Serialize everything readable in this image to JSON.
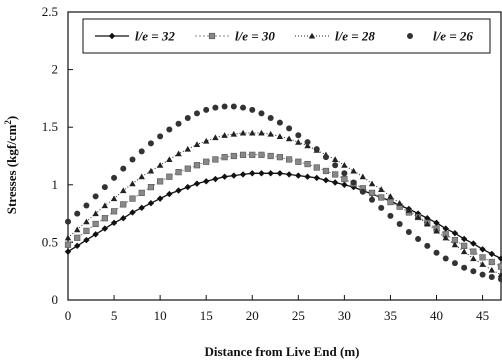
{
  "chart_data": {
    "type": "line",
    "xlabel": "Distance from Live End (m)",
    "ylabel": "Stresses (kgf/cm²)",
    "ylabel_parts": {
      "main": "Stresses (kgf/cm",
      "sup": "2",
      "close": ")"
    },
    "xlim": [
      0,
      47
    ],
    "ylim": [
      0,
      2.5
    ],
    "xticks": [
      "0",
      "5",
      "10",
      "15",
      "20",
      "25",
      "30",
      "35",
      "40",
      "45"
    ],
    "yticks": [
      "0",
      "0.5",
      "1",
      "1.5",
      "2",
      "2.5"
    ],
    "legend_position": "top",
    "x": [
      0,
      1,
      2,
      3,
      4,
      5,
      6,
      7,
      8,
      9,
      10,
      11,
      12,
      13,
      14,
      15,
      16,
      17,
      18,
      19,
      20,
      21,
      22,
      23,
      24,
      25,
      26,
      27,
      28,
      29,
      30,
      31,
      32,
      33,
      34,
      35,
      36,
      37,
      38,
      39,
      40,
      41,
      42,
      43,
      44,
      45,
      46,
      47
    ],
    "series": [
      {
        "name": "l/e = 32",
        "marker": "diamond",
        "color": "#111111",
        "values": [
          0.42,
          0.47,
          0.52,
          0.57,
          0.62,
          0.67,
          0.71,
          0.76,
          0.8,
          0.84,
          0.88,
          0.92,
          0.95,
          0.98,
          1.01,
          1.03,
          1.05,
          1.07,
          1.08,
          1.09,
          1.1,
          1.1,
          1.1,
          1.1,
          1.09,
          1.08,
          1.07,
          1.06,
          1.04,
          1.02,
          1.0,
          0.98,
          0.95,
          0.92,
          0.89,
          0.86,
          0.82,
          0.79,
          0.75,
          0.71,
          0.67,
          0.62,
          0.58,
          0.53,
          0.49,
          0.44,
          0.4,
          0.36
        ]
      },
      {
        "name": "l/e = 30",
        "marker": "square",
        "color": "#888888",
        "values": [
          0.48,
          0.54,
          0.6,
          0.66,
          0.71,
          0.77,
          0.83,
          0.88,
          0.93,
          0.98,
          1.03,
          1.07,
          1.11,
          1.14,
          1.17,
          1.2,
          1.22,
          1.24,
          1.25,
          1.26,
          1.26,
          1.26,
          1.25,
          1.24,
          1.22,
          1.2,
          1.18,
          1.15,
          1.12,
          1.09,
          1.05,
          1.01,
          0.97,
          0.93,
          0.89,
          0.85,
          0.81,
          0.76,
          0.72,
          0.67,
          0.62,
          0.57,
          0.52,
          0.47,
          0.42,
          0.37,
          0.33,
          0.29
        ]
      },
      {
        "name": "l/e = 28",
        "marker": "triangle",
        "color": "#222222",
        "values": [
          0.54,
          0.61,
          0.68,
          0.75,
          0.82,
          0.88,
          0.95,
          1.01,
          1.07,
          1.12,
          1.17,
          1.22,
          1.27,
          1.31,
          1.35,
          1.38,
          1.41,
          1.43,
          1.44,
          1.45,
          1.45,
          1.45,
          1.44,
          1.42,
          1.4,
          1.37,
          1.34,
          1.3,
          1.26,
          1.22,
          1.17,
          1.12,
          1.07,
          1.01,
          0.96,
          0.9,
          0.84,
          0.78,
          0.72,
          0.66,
          0.6,
          0.54,
          0.48,
          0.42,
          0.36,
          0.31,
          0.26,
          0.22
        ]
      },
      {
        "name": "l/e = 26",
        "marker": "circle",
        "color": "#333333",
        "values": [
          0.68,
          0.75,
          0.82,
          0.9,
          0.98,
          1.06,
          1.14,
          1.22,
          1.29,
          1.36,
          1.42,
          1.48,
          1.53,
          1.58,
          1.62,
          1.65,
          1.67,
          1.68,
          1.68,
          1.67,
          1.65,
          1.62,
          1.58,
          1.54,
          1.49,
          1.43,
          1.37,
          1.31,
          1.24,
          1.17,
          1.1,
          1.02,
          0.94,
          0.87,
          0.8,
          0.73,
          0.66,
          0.59,
          0.53,
          0.47,
          0.41,
          0.36,
          0.32,
          0.28,
          0.25,
          0.22,
          0.2,
          0.18
        ]
      }
    ]
  }
}
